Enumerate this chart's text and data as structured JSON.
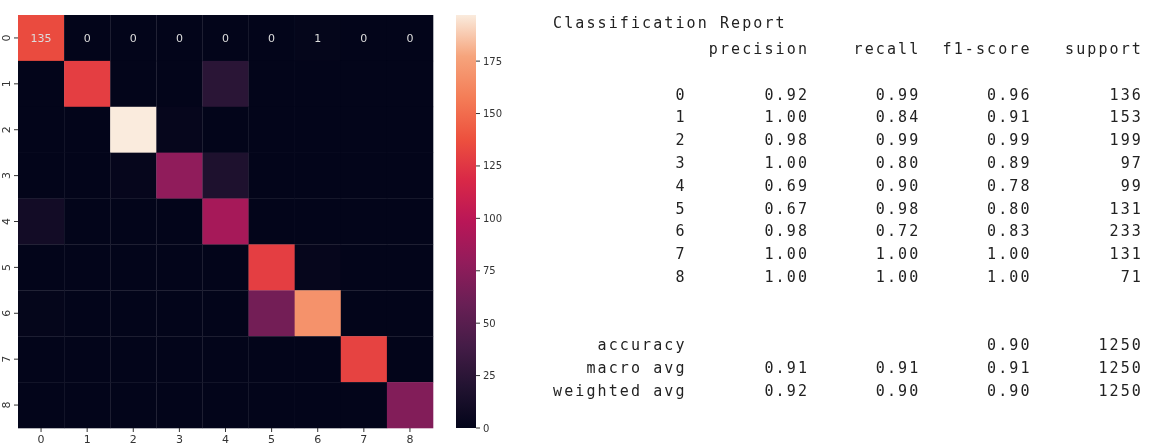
{
  "chart_data": [
    {
      "type": "heatmap",
      "categories": [
        "0",
        "1",
        "2",
        "3",
        "4",
        "5",
        "6",
        "7",
        "8"
      ],
      "y_categories": [
        "0",
        "1",
        "2",
        "3",
        "4",
        "5",
        "6",
        "7",
        "8"
      ],
      "cells": [
        [
          135,
          0,
          0,
          0,
          0,
          0,
          1,
          0,
          0
        ],
        [
          0,
          129,
          0,
          0,
          24,
          0,
          0,
          0,
          0
        ],
        [
          0,
          0,
          197,
          2,
          0,
          0,
          0,
          0,
          0
        ],
        [
          0,
          0,
          2,
          78,
          17,
          0,
          0,
          0,
          0
        ],
        [
          10,
          0,
          0,
          0,
          89,
          0,
          0,
          0,
          0
        ],
        [
          0,
          0,
          0,
          0,
          0,
          129,
          2,
          0,
          0
        ],
        [
          1,
          0,
          0,
          0,
          0,
          64,
          168,
          0,
          0
        ],
        [
          0,
          0,
          0,
          0,
          0,
          0,
          0,
          131,
          0
        ],
        [
          0,
          0,
          0,
          0,
          0,
          0,
          0,
          0,
          71
        ]
      ],
      "cell_labels": [
        [
          "135",
          "0",
          "0",
          "0",
          "0",
          "0",
          "1",
          "0",
          "0"
        ],
        [
          null,
          null,
          null,
          null,
          null,
          null,
          null,
          null,
          null
        ],
        [
          null,
          null,
          null,
          null,
          null,
          null,
          null,
          null,
          null
        ],
        [
          null,
          null,
          null,
          null,
          null,
          null,
          null,
          null,
          null
        ],
        [
          null,
          null,
          null,
          null,
          null,
          null,
          null,
          null,
          null
        ],
        [
          null,
          null,
          null,
          null,
          null,
          null,
          null,
          null,
          null
        ],
        [
          null,
          null,
          null,
          null,
          null,
          null,
          null,
          null,
          null
        ],
        [
          null,
          null,
          null,
          null,
          null,
          null,
          null,
          null,
          null
        ],
        [
          null,
          null,
          null,
          null,
          null,
          null,
          null,
          null,
          null
        ]
      ],
      "clim": [
        0,
        197
      ],
      "cticks": [
        0,
        25,
        50,
        75,
        100,
        125,
        150,
        175
      ]
    },
    {
      "type": "other",
      "title": "Classification Report",
      "annotations": [
        "              precision    recall  f1-score   support",
        "           0       0.92      0.99      0.96       136",
        "           1       1.00      0.84      0.91       153",
        "           2       0.98      0.99      0.99       199",
        "           3       1.00      0.80      0.89        97",
        "           4       0.69      0.90      0.78        99",
        "           5       0.67      0.98      0.80       131",
        "           6       0.98      0.72      0.83       233",
        "           7       1.00      1.00      1.00       131",
        "           8       1.00      1.00      1.00        71",
        "    accuracy                           0.90      1250",
        "   macro avg       0.91      0.91      0.91      1250",
        "weighted avg       0.92      0.90      0.90      1250"
      ]
    }
  ]
}
